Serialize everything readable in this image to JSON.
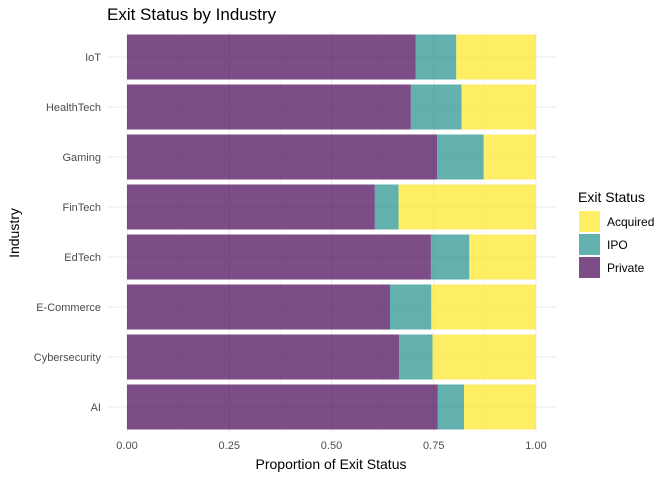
{
  "chart_data": {
    "type": "bar",
    "orientation": "horizontal",
    "stacked": true,
    "title": "Exit Status by Industry",
    "xlabel": "Proportion of Exit Status",
    "ylabel": "Industry",
    "xlim": [
      0,
      1
    ],
    "xticks": [
      "0.00",
      "0.25",
      "0.50",
      "0.75",
      "1.00"
    ],
    "grid": true,
    "categories": [
      "AI",
      "Cybersecurity",
      "E-Commerce",
      "EdTech",
      "FinTech",
      "Gaming",
      "HealthTech",
      "IoT"
    ],
    "series": [
      {
        "name": "Private",
        "color": "#440154",
        "values": [
          0.76,
          0.665,
          0.643,
          0.743,
          0.606,
          0.758,
          0.694,
          0.706
        ]
      },
      {
        "name": "IPO",
        "color": "#21908C",
        "values": [
          0.064,
          0.082,
          0.101,
          0.094,
          0.058,
          0.114,
          0.124,
          0.099
        ]
      },
      {
        "name": "Acquired",
        "color": "#FDE725",
        "values": [
          0.176,
          0.253,
          0.256,
          0.163,
          0.336,
          0.128,
          0.182,
          0.195
        ]
      }
    ],
    "legend": {
      "title": "Exit Status",
      "position": "right",
      "entries": [
        {
          "label": "Acquired",
          "color": "#FDE725"
        },
        {
          "label": "IPO",
          "color": "#21908C"
        },
        {
          "label": "Private",
          "color": "#440154"
        }
      ]
    }
  }
}
